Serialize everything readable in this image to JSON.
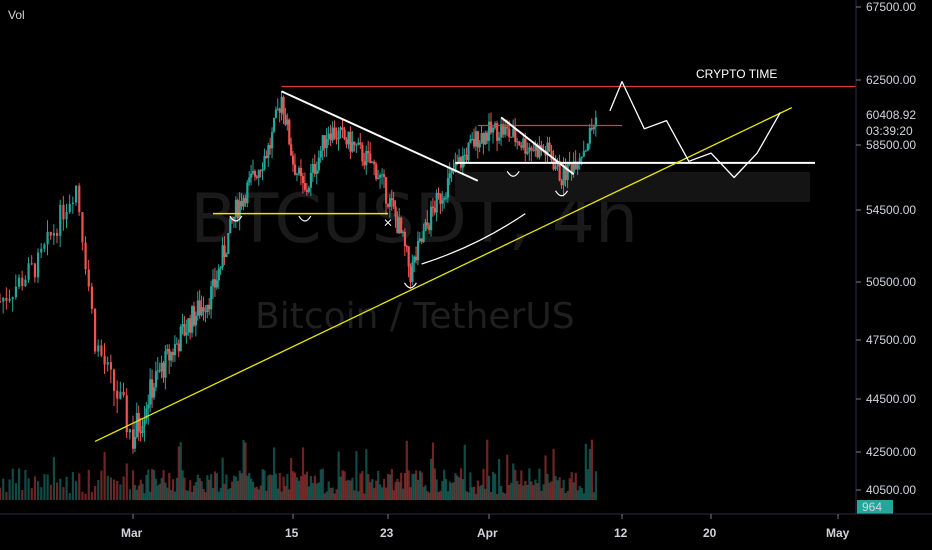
{
  "chart_data": {
    "type": "candlestick",
    "symbol_watermark": "BTCUSDT, 4h",
    "pair_watermark": "Bitcoin / TetherUS",
    "volume_label": "Vol",
    "annotation": "CRYPTO TIME",
    "y_ticks": [
      "67500.00",
      "62500.00",
      "58500.00",
      "54500.00",
      "50500.00",
      "47500.00",
      "44500.00",
      "42500.00",
      "40500.00"
    ],
    "y_tick_values": [
      67500,
      62500,
      58500,
      54500,
      50500,
      47500,
      44500,
      42500,
      40500
    ],
    "x_ticks": [
      "Mar",
      "15",
      "23",
      "Apr",
      "12",
      "20",
      "May"
    ],
    "x_tick_dates": [
      "2021-03-01",
      "2021-03-15",
      "2021-03-23",
      "2021-04-01",
      "2021-04-12",
      "2021-04-20",
      "2021-05-01"
    ],
    "last_price": "60408.92",
    "countdown": "03:39:20",
    "last_volume": "964",
    "colors": {
      "up": "#26a69a",
      "down": "#ef5350",
      "last_price_bg": "#26a69a",
      "red_line": "#e53935",
      "trend_line": "#e6e600",
      "white": "#ffffff"
    },
    "price_path": [
      [
        "2021-02-22",
        49500
      ],
      [
        "2021-02-24",
        51500
      ],
      [
        "2021-02-26",
        56000
      ],
      [
        "2021-02-27",
        47500
      ],
      [
        "2021-02-28",
        45000
      ],
      [
        "2021-03-01",
        43000
      ],
      [
        "2021-03-03",
        45500
      ],
      [
        "2021-03-06",
        48500
      ],
      [
        "2021-03-08",
        50000
      ],
      [
        "2021-03-10",
        54500
      ],
      [
        "2021-03-13",
        58500
      ],
      [
        "2021-03-14",
        61500
      ],
      [
        "2021-03-15",
        57500
      ],
      [
        "2021-03-16",
        55500
      ],
      [
        "2021-03-18",
        59500
      ],
      [
        "2021-03-20",
        58500
      ],
      [
        "2021-03-22",
        57000
      ],
      [
        "2021-03-24",
        53500
      ],
      [
        "2021-03-25",
        51000
      ],
      [
        "2021-03-27",
        54500
      ],
      [
        "2021-03-29",
        57000
      ],
      [
        "2021-03-31",
        59000
      ],
      [
        "2021-04-02",
        59500
      ],
      [
        "2021-04-04",
        58500
      ],
      [
        "2021-04-06",
        58000
      ],
      [
        "2021-04-07",
        56500
      ],
      [
        "2021-04-08",
        57500
      ],
      [
        "2021-04-09",
        58500
      ],
      [
        "2021-04-10",
        60408.92
      ]
    ],
    "drawn_levels": {
      "resistance": 62100,
      "support": 57400,
      "local_resistance": 59700,
      "yellow_support": 54300
    }
  }
}
